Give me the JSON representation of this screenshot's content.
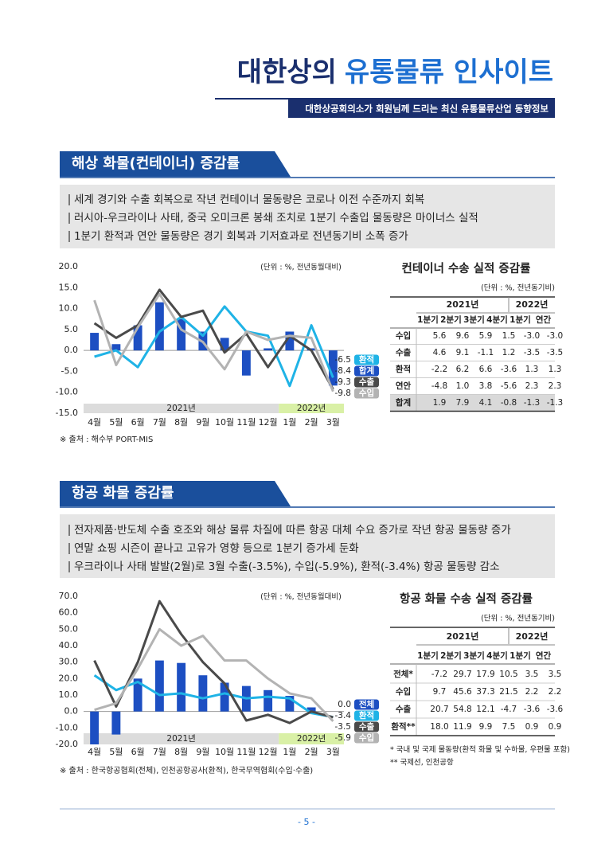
{
  "header": {
    "title_parts": [
      "대한상의",
      "유통물류 인사이트"
    ],
    "subtitle": "대한상공회의소가 회원님께 드리는 최신 유통물류산업 동향정보"
  },
  "sections": [
    {
      "heading": "해상 화물(컨테이너) 증감률",
      "bullets": [
        "세계 경기와 수출 회복으로 작년 컨테이너 물동량은 코로나 이전 수준까지 회복",
        "러시아-우크라이나 사태, 중국 오미크론 봉쇄 조치로 1분기 수출입 물동량은 마이너스 실적",
        "1분기 환적과 연안 물동량은 경기 회복과 기저효과로 전년동기비 소폭 증가"
      ],
      "chart": {
        "type": "combo",
        "unit_note": "(단위 : %, 전년동월대비)",
        "categories": [
          "4월",
          "5월",
          "6월",
          "7월",
          "8월",
          "9월",
          "10월",
          "11월",
          "12월",
          "1월",
          "2월",
          "3월"
        ],
        "year_labels": [
          "2021년",
          "2022년"
        ],
        "ylim": [
          -15,
          20
        ],
        "yticks": [
          {
            "value": -15,
            "label": "-15.0"
          },
          {
            "value": -10,
            "label": "-10.0"
          },
          {
            "value": -5,
            "label": "-5.0"
          },
          {
            "value": 0,
            "label": "0.0"
          },
          {
            "value": 5,
            "label": "5.0"
          },
          {
            "value": 10,
            "label": "10.0"
          },
          {
            "value": 15,
            "label": "15.0"
          },
          {
            "value": 20,
            "label": "20.0"
          }
        ],
        "series": [
          {
            "name": "환적",
            "kind": "line",
            "color": "#1fb3e6",
            "values": [
              -1.5,
              0.0,
              -4.0,
              4.5,
              8.0,
              3.5,
              10.5,
              4.5,
              3.5,
              -8.5,
              6.0,
              -6.5
            ],
            "end_label": "-6.5"
          },
          {
            "name": "합계",
            "kind": "bar",
            "color": "#1d4fc2",
            "values": [
              4.2,
              1.5,
              6.0,
              11.5,
              7.5,
              4.5,
              3.0,
              -6.0,
              0.5,
              4.5,
              0.5,
              -8.4
            ],
            "end_label": "-8.4"
          },
          {
            "name": "수출",
            "kind": "line",
            "color": "#4a4a4a",
            "values": [
              6.5,
              3.0,
              6.0,
              14.5,
              8.0,
              9.5,
              -0.5,
              4.0,
              -4.0,
              3.5,
              0.0,
              -9.3
            ],
            "end_label": "-9.3"
          },
          {
            "name": "수입",
            "kind": "line",
            "color": "#b3b3b3",
            "values": [
              12.0,
              -3.5,
              5.5,
              13.5,
              5.0,
              2.0,
              -4.5,
              4.5,
              2.5,
              3.5,
              3.0,
              -9.8
            ],
            "end_label": "-9.8"
          }
        ]
      },
      "table": {
        "title": "컨테이너 수송 실적 증감률",
        "unit": "(단위 : %, 전년동기비)",
        "groups": [
          "2021년",
          "2022년"
        ],
        "columns": [
          "1분기",
          "2분기",
          "3분기",
          "4분기",
          "1분기",
          "연간"
        ],
        "rows": [
          [
            "수입",
            "5.6",
            "9.6",
            "5.9",
            "1.5",
            "-3.0",
            "-3.0"
          ],
          [
            "수출",
            "4.6",
            "9.1",
            "-1.1",
            "1.2",
            "-3.5",
            "-3.5"
          ],
          [
            "환적",
            "-2.2",
            "6.2",
            "6.6",
            "-3.6",
            "1.3",
            "1.3"
          ],
          [
            "연안",
            "-4.8",
            "1.0",
            "3.8",
            "-5.6",
            "2.3",
            "2.3"
          ],
          [
            "합계",
            "1.9",
            "7.9",
            "4.1",
            "-0.8",
            "-1.3",
            "-1.3"
          ]
        ],
        "notes": []
      },
      "source": "※ 출처 : 해수부 PORT-MIS"
    },
    {
      "heading": "항공 화물 증감률",
      "bullets": [
        "전자제품·반도체 수출 호조와 해상 물류 차질에 따른 항공 대체 수요 증가로 작년 항공 물동량 증가",
        "연말 쇼핑 시즌이 끝나고 고유가 영향 등으로 1분기 증가세 둔화",
        "우크라이나 사태 발발(2월)로 3월 수출(-3.5%), 수입(-5.9%), 환적(-3.4%) 항공 물동량 감소"
      ],
      "chart": {
        "type": "combo",
        "unit_note": "(단위 : %, 전년동월대비)",
        "categories": [
          "4월",
          "5월",
          "6월",
          "7월",
          "8월",
          "9월",
          "10월",
          "11월",
          "12월",
          "1월",
          "2월",
          "3월"
        ],
        "year_labels": [
          "2021년",
          "2022년"
        ],
        "ylim": [
          -20,
          70
        ],
        "yticks": [
          {
            "value": -20,
            "label": "-20.0"
          },
          {
            "value": -10,
            "label": "-10.0"
          },
          {
            "value": 0,
            "label": "0.0"
          },
          {
            "value": 10,
            "label": "10.0"
          },
          {
            "value": 20,
            "label": "20.0"
          },
          {
            "value": 30,
            "label": "30.0"
          },
          {
            "value": 40,
            "label": "40.0"
          },
          {
            "value": 50,
            "label": "50.0"
          },
          {
            "value": 60,
            "label": "60.0"
          },
          {
            "value": 70,
            "label": "70.0"
          }
        ],
        "series": [
          {
            "name": "전체",
            "kind": "bar",
            "color": "#1d4fc2",
            "values": [
              -20,
              -14,
              20,
              31,
              29.5,
              22,
              17.5,
              15.5,
              13,
              9.5,
              2.5,
              0
            ],
            "end_label": "0.0"
          },
          {
            "name": "환적",
            "kind": "line",
            "color": "#1fb3e6",
            "values": [
              22,
              13,
              18,
              10,
              11,
              8,
              11,
              8,
              9,
              8,
              -1,
              -3.4
            ],
            "end_label": "-3.4"
          },
          {
            "name": "수출",
            "kind": "line",
            "color": "#4a4a4a",
            "values": [
              31,
              3,
              30,
              67,
              47,
              30,
              17,
              -5.5,
              -2,
              -7,
              0,
              -3.5
            ],
            "end_label": "-3.5"
          },
          {
            "name": "수입",
            "kind": "line",
            "color": "#b3b3b3",
            "values": [
              1,
              5,
              26,
              50,
              40,
              46,
              31,
              31,
              20,
              11,
              8,
              -5.9
            ],
            "end_label": "-5.9"
          }
        ]
      },
      "table": {
        "title": "항공 화물 수송 실적 증감률",
        "unit": "(단위 : %, 전년동기비)",
        "groups": [
          "2021년",
          "2022년"
        ],
        "columns": [
          "1분기",
          "2분기",
          "3분기",
          "4분기",
          "1분기",
          "연간"
        ],
        "rows": [
          [
            "전체*",
            "-7.2",
            "29.7",
            "17.9",
            "10.5",
            "3.5",
            "3.5"
          ],
          [
            "수입",
            "9.7",
            "45.6",
            "37.3",
            "21.5",
            "2.2",
            "2.2"
          ],
          [
            "수출",
            "20.7",
            "54.8",
            "12.1",
            "-4.7",
            "-3.6",
            "-3.6"
          ],
          [
            "환적**",
            "18.0",
            "11.9",
            "9.9",
            "7.5",
            "0.9",
            "0.9"
          ]
        ],
        "notes": [
          "* 국내 및 국제 물동량(환적 화물 및 수하물, 우편물 포함)",
          "** 국제선, 인천공항"
        ]
      },
      "source": "※ 출처 : 한국항공협회(전체), 인천공항공사(환적), 한국무역협회(수입·수출)"
    }
  ],
  "footer": {
    "page": "- 5 -"
  }
}
